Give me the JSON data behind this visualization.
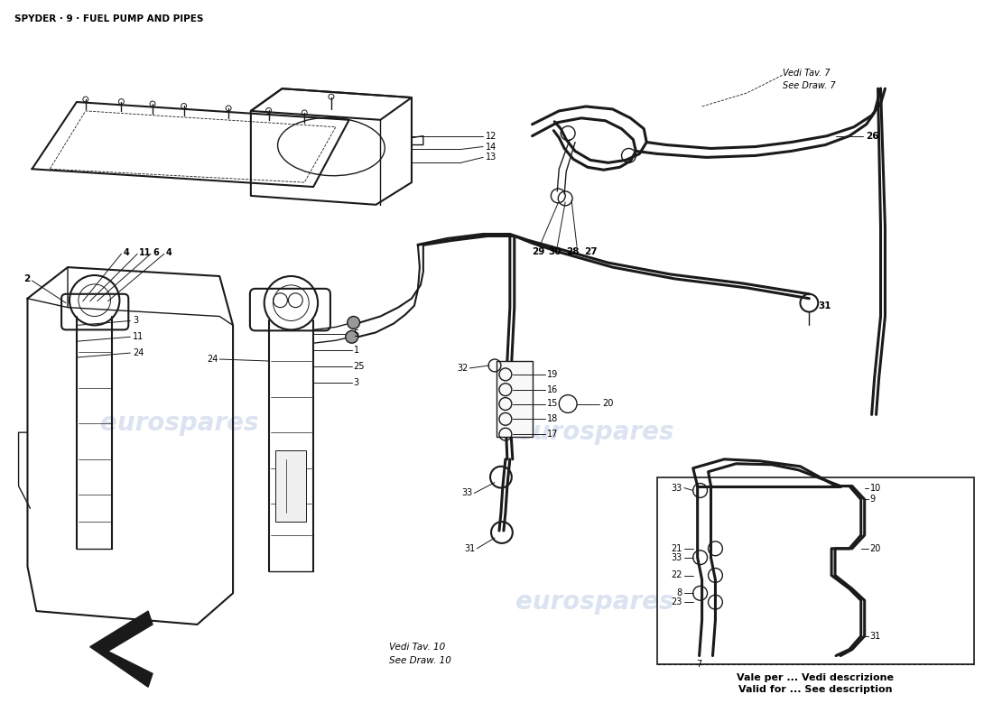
{
  "title": "SPYDER ·9· FUEL PUMP AND PIPES",
  "background_color": "#ffffff",
  "watermark_text": "eurospares",
  "watermark_color": "#c8d4e8",
  "title_fontsize": 7.5,
  "note_vedi_tav7_it": "Vedi Tav. 7",
  "note_vedi_tav7_en": "See Draw. 7",
  "note_vedi_tav10_it": "Vedi Tav. 10",
  "note_vedi_tav10_en": "See Draw. 10",
  "note_vale_it": "Vale per ... Vedi descrizione",
  "note_vale_en": "Valid for ... See description",
  "diagram_color": "#1a1a1a"
}
